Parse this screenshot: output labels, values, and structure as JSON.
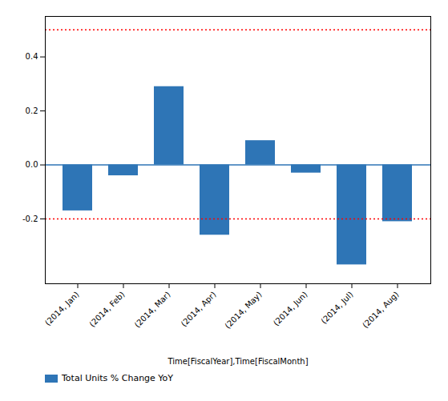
{
  "chart_data": {
    "type": "bar",
    "categories": [
      "(2014, Jan)",
      "(2014, Feb)",
      "(2014, Mar)",
      "(2014, Apr)",
      "(2014, May)",
      "(2014, Jun)",
      "(2014, Jul)",
      "(2014, Aug)"
    ],
    "series": [
      {
        "name": "Total Units % Change YoY",
        "color": "#2e75b6",
        "values": [
          -0.17,
          -0.04,
          0.29,
          -0.26,
          0.09,
          -0.03,
          -0.37,
          -0.21
        ]
      }
    ],
    "x_label": "Time[FiscalYear],Time[FiscalMonth]",
    "ylim": [
      -0.44,
      0.55
    ],
    "yticks": [
      {
        "value": -0.2,
        "label": "-0.2"
      },
      {
        "value": 0,
        "label": "0.0"
      },
      {
        "value": 0.2,
        "label": "0.2"
      },
      {
        "value": 0.4,
        "label": "0.4"
      }
    ],
    "reference_lines": [
      {
        "value": 0.5,
        "color": "red",
        "line_style": "dotted"
      },
      {
        "value": -0.2,
        "color": "red",
        "line_style": "dotted"
      },
      {
        "value": 0,
        "color": "#2e75b6",
        "line_style": "solid"
      }
    ],
    "legend": "lower left",
    "grid": false
  }
}
